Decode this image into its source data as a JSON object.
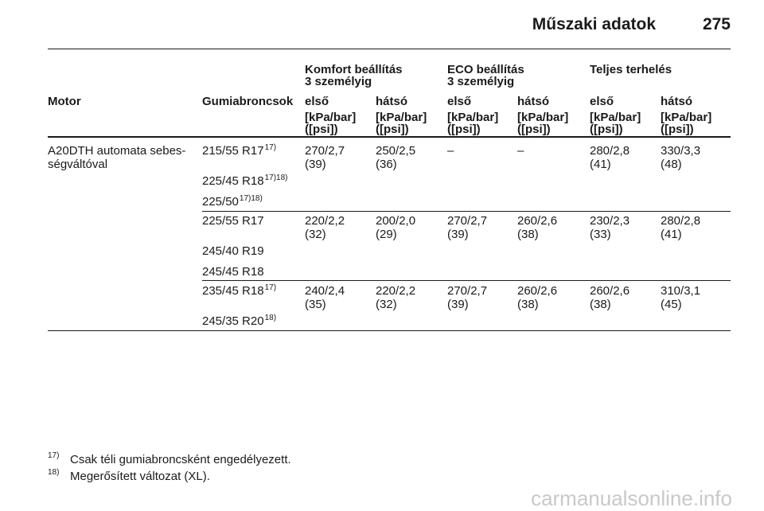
{
  "header": {
    "title": "Műszaki adatok",
    "page": "275"
  },
  "table": {
    "group_headers": [
      [
        "Komfort beállítás",
        "3 személyig"
      ],
      [
        "ECO beállítás",
        "3 személyig"
      ],
      [
        "Teljes terhelés"
      ]
    ],
    "columns": [
      "Motor",
      "Gumiabroncsok",
      "első",
      "hátsó",
      "első",
      "hátsó",
      "első",
      "hátsó"
    ],
    "units": [
      "[kPa/bar]",
      "([psi])"
    ],
    "groups": [
      {
        "motor": [
          "A20DTH automata sebes-",
          "ségváltóval"
        ],
        "tires": [
          {
            "size": "215/55 R17",
            "note": "17)"
          },
          {
            "size": "225/45 R18",
            "note": "17)18)"
          },
          {
            "size": "225/50",
            "note": "17)18)"
          }
        ],
        "values": [
          [
            "270/2,7",
            "(39)"
          ],
          [
            "250/2,5",
            "(36)"
          ],
          [
            "–"
          ],
          [
            "–"
          ],
          [
            "280/2,8",
            "(41)"
          ],
          [
            "330/3,3",
            "(48)"
          ]
        ]
      },
      {
        "motor": [],
        "tires": [
          {
            "size": "225/55 R17"
          },
          {
            "size": "245/40 R19"
          },
          {
            "size": "245/45 R18"
          }
        ],
        "values": [
          [
            "220/2,2",
            "(32)"
          ],
          [
            "200/2,0",
            "(29)"
          ],
          [
            "270/2,7",
            "(39)"
          ],
          [
            "260/2,6",
            "(38)"
          ],
          [
            "230/2,3",
            "(33)"
          ],
          [
            "280/2,8",
            "(41)"
          ]
        ]
      },
      {
        "motor": [],
        "tires": [
          {
            "size": "235/45 R18",
            "note": "17)"
          },
          {
            "size": "245/35 R20",
            "note": "18)"
          }
        ],
        "values": [
          [
            "240/2,4",
            "(35)"
          ],
          [
            "220/2,2",
            "(32)"
          ],
          [
            "270/2,7",
            "(39)"
          ],
          [
            "260/2,6",
            "(38)"
          ],
          [
            "260/2,6",
            "(38)"
          ],
          [
            "310/3,1",
            "(45)"
          ]
        ]
      }
    ]
  },
  "footnotes": [
    {
      "mark": "17)",
      "text": "Csak téli gumiabroncsként engedélyezett."
    },
    {
      "mark": "18)",
      "text": "Megerősített változat (XL)."
    }
  ],
  "watermark": "carmanualsonline.info"
}
